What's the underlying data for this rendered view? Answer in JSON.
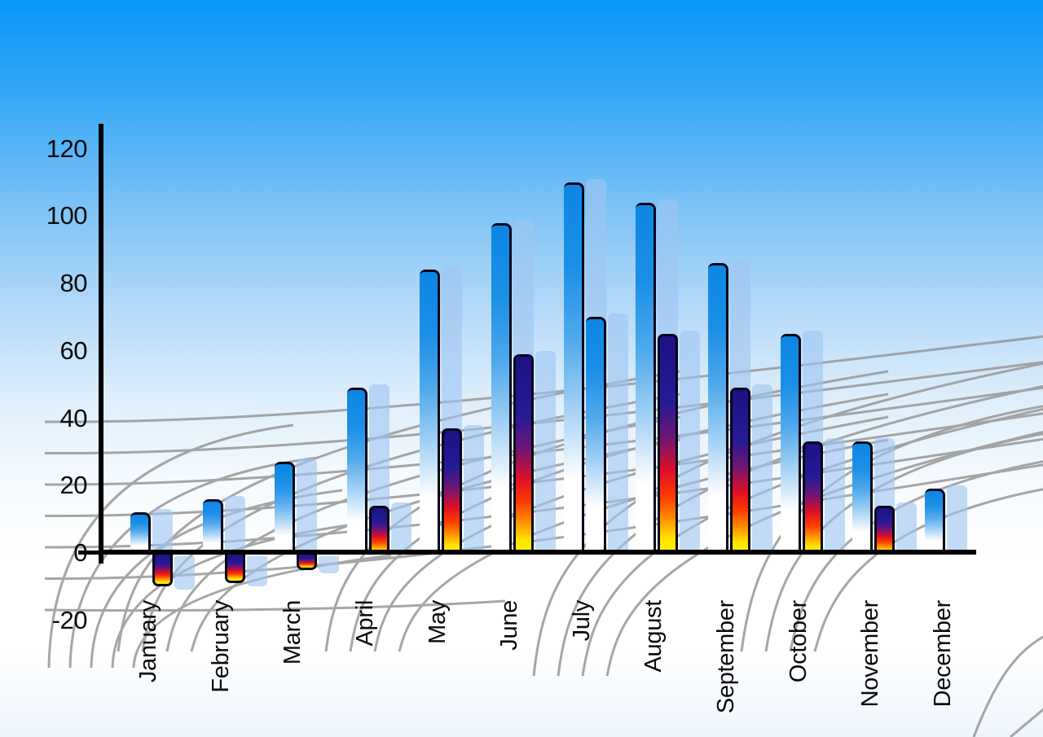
{
  "y_axis": {
    "tick_labels": [
      "120",
      "100",
      "80",
      "60",
      "40",
      "20",
      "0",
      "-20"
    ],
    "min": -20,
    "max": 120,
    "step": 20
  },
  "chart_data": {
    "type": "bar",
    "title": "",
    "xlabel": "",
    "ylabel": "",
    "categories": [
      "January",
      "February",
      "March",
      "April",
      "May",
      "June",
      "July",
      "August",
      "September",
      "October",
      "November",
      "December"
    ],
    "series": [
      {
        "name": "primary-blue-bars",
        "values": [
          12,
          16,
          27,
          49,
          84,
          98,
          110,
          104,
          86,
          65,
          33,
          19
        ]
      },
      {
        "name": "secondary-heat-bars",
        "values": [
          -10,
          -9,
          -5,
          14,
          37,
          59,
          70,
          65,
          49,
          33,
          14,
          null
        ],
        "bar_styles": [
          "heat",
          "heat",
          "heat",
          "heat",
          "heat",
          "heat",
          "blue",
          "heat",
          "heat",
          "heat",
          "heat",
          null
        ]
      }
    ],
    "ylim": [
      -20,
      120
    ],
    "y_ticks": [
      120,
      100,
      80,
      60,
      40,
      20,
      0,
      -20
    ],
    "legend": null,
    "grid": "decorative perspective floor grid",
    "notes": "Each bar casts a translucent light-blue offset shadow; July secondary bar is blue-styled; December has no secondary bar."
  },
  "colors": {
    "sky_top": "#0997fb",
    "sky_bottom": "#eef5fc",
    "bar_blue_top": "#0d86e4",
    "bar_fade_bottom": "#ffffff",
    "heat_navy": "#1c1184",
    "heat_red": "#df0f24",
    "heat_yellow": "#fff600",
    "bar_outline": "#06061a",
    "shadow_bar": "rgba(158,197,240,0.62)",
    "grid_line": "#9a9a9a",
    "axis": "#000000",
    "label_text": "#0a0a0c"
  }
}
